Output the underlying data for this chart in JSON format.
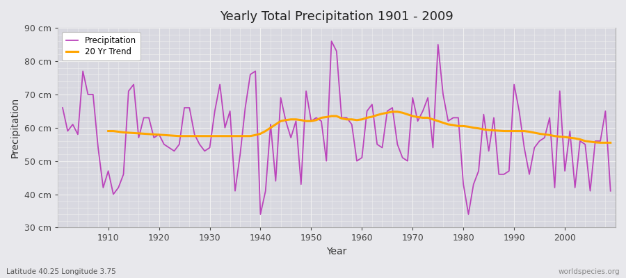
{
  "title": "Yearly Total Precipitation 1901 - 2009",
  "xlabel": "Year",
  "ylabel": "Precipitation",
  "subtitle": "Latitude 40.25 Longitude 3.75",
  "watermark": "worldspecies.org",
  "years": [
    1901,
    1902,
    1903,
    1904,
    1905,
    1906,
    1907,
    1908,
    1909,
    1910,
    1911,
    1912,
    1913,
    1914,
    1915,
    1916,
    1917,
    1918,
    1919,
    1920,
    1921,
    1922,
    1923,
    1924,
    1925,
    1926,
    1927,
    1928,
    1929,
    1930,
    1931,
    1932,
    1933,
    1934,
    1935,
    1936,
    1937,
    1938,
    1939,
    1940,
    1941,
    1942,
    1943,
    1944,
    1945,
    1946,
    1947,
    1948,
    1949,
    1950,
    1951,
    1952,
    1953,
    1954,
    1955,
    1956,
    1957,
    1958,
    1959,
    1960,
    1961,
    1962,
    1963,
    1964,
    1965,
    1966,
    1967,
    1968,
    1969,
    1970,
    1971,
    1972,
    1973,
    1974,
    1975,
    1976,
    1977,
    1978,
    1979,
    1980,
    1981,
    1982,
    1983,
    1984,
    1985,
    1986,
    1987,
    1988,
    1989,
    1990,
    1991,
    1992,
    1993,
    1994,
    1995,
    1996,
    1997,
    1998,
    1999,
    2000,
    2001,
    2002,
    2003,
    2004,
    2005,
    2006,
    2007,
    2008,
    2009
  ],
  "precip": [
    66,
    59,
    61,
    58,
    77,
    70,
    70,
    54,
    42,
    47,
    40,
    42,
    46,
    71,
    73,
    57,
    63,
    63,
    57,
    58,
    55,
    54,
    53,
    55,
    66,
    66,
    58,
    55,
    53,
    54,
    65,
    73,
    60,
    65,
    41,
    52,
    66,
    76,
    77,
    34,
    41,
    61,
    44,
    69,
    62,
    57,
    62,
    43,
    71,
    62,
    63,
    62,
    50,
    86,
    83,
    63,
    63,
    61,
    50,
    51,
    65,
    67,
    55,
    54,
    65,
    66,
    55,
    51,
    50,
    69,
    62,
    65,
    69,
    54,
    85,
    70,
    62,
    63,
    63,
    43,
    34,
    43,
    47,
    64,
    53,
    63,
    46,
    46,
    47,
    73,
    65,
    54,
    46,
    54,
    56,
    57,
    63,
    42,
    71,
    47,
    59,
    42,
    56,
    55,
    41,
    56,
    56,
    65,
    41
  ],
  "trend_years": [
    1910,
    1911,
    1912,
    1913,
    1914,
    1915,
    1916,
    1917,
    1918,
    1919,
    1920,
    1921,
    1922,
    1923,
    1924,
    1925,
    1926,
    1927,
    1928,
    1929,
    1930,
    1931,
    1932,
    1933,
    1934,
    1935,
    1936,
    1937,
    1938,
    1939,
    1940,
    1941,
    1942,
    1943,
    1944,
    1945,
    1946,
    1947,
    1948,
    1949,
    1950,
    1951,
    1952,
    1953,
    1954,
    1955,
    1956,
    1957,
    1958,
    1959,
    1960,
    1961,
    1962,
    1963,
    1964,
    1965,
    1966,
    1967,
    1968,
    1969,
    1970,
    1971,
    1972,
    1973,
    1974,
    1975,
    1976,
    1977,
    1978,
    1979,
    1980,
    1981,
    1982,
    1983,
    1984,
    1985,
    1986,
    1987,
    1988,
    1989,
    1990,
    1991,
    1992,
    1993,
    1994,
    1995,
    1996,
    1997,
    1998,
    1999,
    2000,
    2001,
    2002,
    2003,
    2004,
    2005,
    2006,
    2007,
    2008,
    2009
  ],
  "trend": [
    59.0,
    59.0,
    58.8,
    58.6,
    58.5,
    58.4,
    58.3,
    58.2,
    58.1,
    58.0,
    57.9,
    57.8,
    57.7,
    57.6,
    57.5,
    57.5,
    57.5,
    57.5,
    57.5,
    57.5,
    57.5,
    57.5,
    57.5,
    57.5,
    57.5,
    57.5,
    57.5,
    57.5,
    57.5,
    57.8,
    58.2,
    59.0,
    60.0,
    61.0,
    62.0,
    62.3,
    62.5,
    62.5,
    62.3,
    62.0,
    62.0,
    62.3,
    63.0,
    63.2,
    63.5,
    63.5,
    62.8,
    62.5,
    62.5,
    62.3,
    62.5,
    63.0,
    63.3,
    63.8,
    64.2,
    64.5,
    64.8,
    64.8,
    64.5,
    64.0,
    63.5,
    63.2,
    63.0,
    63.0,
    62.5,
    62.0,
    61.5,
    61.0,
    60.8,
    60.5,
    60.5,
    60.3,
    60.0,
    59.8,
    59.5,
    59.3,
    59.2,
    59.1,
    59.0,
    59.0,
    59.0,
    59.0,
    59.0,
    58.8,
    58.5,
    58.2,
    58.0,
    57.8,
    57.5,
    57.3,
    57.2,
    57.0,
    56.8,
    56.5,
    56.0,
    55.8,
    55.6,
    55.5,
    55.5,
    55.5
  ],
  "precip_color": "#bb44bb",
  "trend_color": "#ffa500",
  "bg_color": "#e8e8ec",
  "plot_bg_color": "#d8d8e0",
  "grid_color": "#f0f0f0",
  "ylim": [
    30,
    90
  ],
  "yticks": [
    30,
    40,
    50,
    60,
    70,
    80,
    90
  ],
  "ytick_labels": [
    "30 cm",
    "40 cm",
    "50 cm",
    "60 cm",
    "70 cm",
    "80 cm",
    "90 cm"
  ],
  "xlim": [
    1900,
    2010
  ],
  "xticks": [
    1910,
    1920,
    1930,
    1940,
    1950,
    1960,
    1970,
    1980,
    1990,
    2000
  ]
}
